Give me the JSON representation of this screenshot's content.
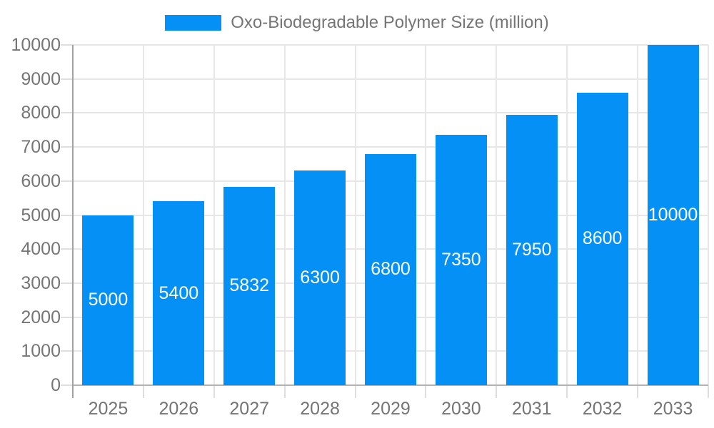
{
  "legend": {
    "label": "Oxo-Biodegradable Polymer Size (million)"
  },
  "chart_data": {
    "type": "bar",
    "title": "Oxo-Biodegradable Polymer Size (million)",
    "categories": [
      "2025",
      "2026",
      "2027",
      "2028",
      "2029",
      "2030",
      "2031",
      "2032",
      "2033"
    ],
    "values": [
      5000,
      5400,
      5832,
      6300,
      6800,
      7350,
      7950,
      8600,
      10000
    ],
    "bar_value_labels": [
      "5000",
      "5400",
      "5832",
      "6300",
      "6800",
      "7350",
      "7950",
      "8600",
      "10000"
    ],
    "xlabel": "",
    "ylabel": "",
    "ylim": [
      0,
      10000
    ],
    "ytick_step": 1000,
    "ytick_labels": [
      "0",
      "1000",
      "2000",
      "3000",
      "4000",
      "5000",
      "6000",
      "7000",
      "8000",
      "9000",
      "10000"
    ],
    "grid": true,
    "legend_position": "top",
    "colors": {
      "bar": "#0590f5",
      "bar_label_text": "#ffffff",
      "tick_text": "#757575",
      "legend_text": "#757575",
      "gridline": "#e7e7e7",
      "axis_line": "#a3a3a3",
      "baseline": "#b3b3b3",
      "background": "#ffffff"
    }
  }
}
